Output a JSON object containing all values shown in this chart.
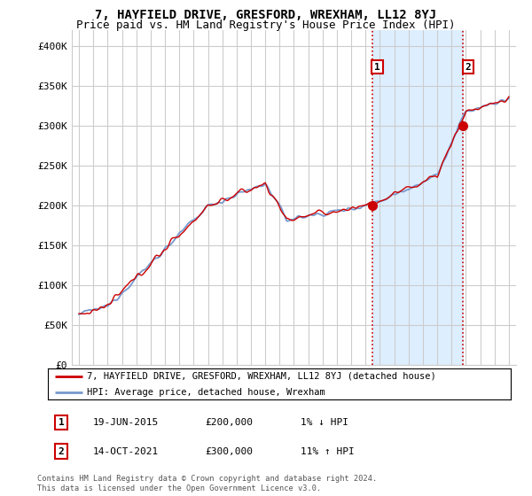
{
  "title": "7, HAYFIELD DRIVE, GRESFORD, WREXHAM, LL12 8YJ",
  "subtitle": "Price paid vs. HM Land Registry's House Price Index (HPI)",
  "ylim": [
    0,
    420000
  ],
  "yticks": [
    0,
    50000,
    100000,
    150000,
    200000,
    250000,
    300000,
    350000,
    400000
  ],
  "ytick_labels": [
    "£0",
    "£50K",
    "£100K",
    "£150K",
    "£200K",
    "£250K",
    "£300K",
    "£350K",
    "£400K"
  ],
  "hpi_color": "#7799cc",
  "price_color": "#cc0000",
  "vline_color": "#cc0000",
  "shade_color": "#ddeeff",
  "background_color": "#ffffff",
  "grid_color": "#cccccc",
  "legend1": "7, HAYFIELD DRIVE, GRESFORD, WREXHAM, LL12 8YJ (detached house)",
  "legend2": "HPI: Average price, detached house, Wrexham",
  "sale1_label": "1",
  "sale1_date": "19-JUN-2015",
  "sale1_price": "£200,000",
  "sale1_hpi": "1% ↓ HPI",
  "sale2_label": "2",
  "sale2_date": "14-OCT-2021",
  "sale2_price": "£300,000",
  "sale2_hpi": "11% ↑ HPI",
  "footnote": "Contains HM Land Registry data © Crown copyright and database right 2024.\nThis data is licensed under the Open Government Licence v3.0.",
  "title_fontsize": 10,
  "subtitle_fontsize": 9,
  "font_family": "monospace"
}
